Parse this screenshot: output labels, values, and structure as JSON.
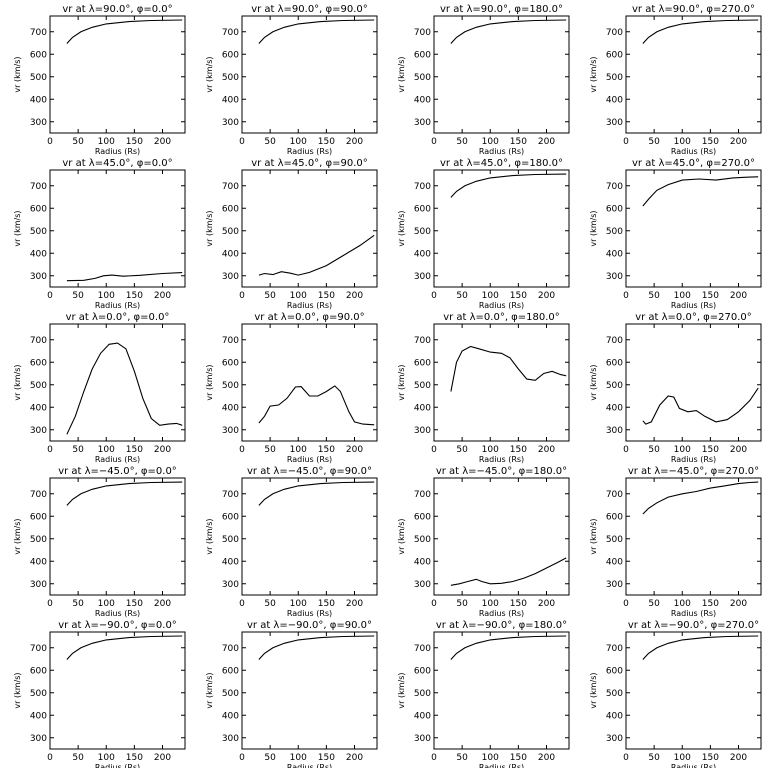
{
  "chart_data": {
    "type": "line",
    "x_label": "Radius (Rs)",
    "y_label": "vr (km/s)",
    "x_range": [
      0,
      240
    ],
    "y_range": [
      250,
      770
    ],
    "x_ticks": [
      0,
      50,
      100,
      150,
      200
    ],
    "y_ticks": [
      300,
      400,
      500,
      600,
      700
    ],
    "grid": false,
    "panels": [
      {
        "title": "vr at λ=90.0°, φ=0.0°",
        "points": [
          [
            30,
            648
          ],
          [
            40,
            675
          ],
          [
            55,
            700
          ],
          [
            75,
            720
          ],
          [
            100,
            735
          ],
          [
            140,
            745
          ],
          [
            180,
            750
          ],
          [
            235,
            752
          ]
        ]
      },
      {
        "title": "vr at λ=90.0°, φ=90.0°",
        "points": [
          [
            30,
            648
          ],
          [
            40,
            675
          ],
          [
            55,
            700
          ],
          [
            75,
            720
          ],
          [
            100,
            735
          ],
          [
            140,
            745
          ],
          [
            180,
            750
          ],
          [
            235,
            752
          ]
        ]
      },
      {
        "title": "vr at λ=90.0°, φ=180.0°",
        "points": [
          [
            30,
            648
          ],
          [
            40,
            675
          ],
          [
            55,
            700
          ],
          [
            75,
            720
          ],
          [
            100,
            735
          ],
          [
            140,
            745
          ],
          [
            180,
            750
          ],
          [
            235,
            752
          ]
        ]
      },
      {
        "title": "vr at λ=90.0°, φ=270.0°",
        "points": [
          [
            30,
            648
          ],
          [
            40,
            675
          ],
          [
            55,
            700
          ],
          [
            75,
            720
          ],
          [
            100,
            735
          ],
          [
            140,
            745
          ],
          [
            180,
            750
          ],
          [
            235,
            752
          ]
        ]
      },
      {
        "title": "vr at λ=45.0°, φ=0.0°",
        "points": [
          [
            30,
            278
          ],
          [
            60,
            280
          ],
          [
            80,
            288
          ],
          [
            95,
            300
          ],
          [
            110,
            303
          ],
          [
            130,
            298
          ],
          [
            160,
            302
          ],
          [
            200,
            310
          ],
          [
            235,
            314
          ]
        ]
      },
      {
        "title": "vr at λ=45.0°, φ=90.0°",
        "points": [
          [
            30,
            303
          ],
          [
            40,
            310
          ],
          [
            55,
            305
          ],
          [
            70,
            318
          ],
          [
            85,
            312
          ],
          [
            100,
            303
          ],
          [
            120,
            315
          ],
          [
            150,
            345
          ],
          [
            180,
            390
          ],
          [
            210,
            435
          ],
          [
            235,
            480
          ]
        ]
      },
      {
        "title": "vr at λ=45.0°, φ=180.0°",
        "points": [
          [
            30,
            648
          ],
          [
            40,
            675
          ],
          [
            55,
            700
          ],
          [
            75,
            720
          ],
          [
            100,
            735
          ],
          [
            140,
            745
          ],
          [
            180,
            750
          ],
          [
            235,
            752
          ]
        ]
      },
      {
        "title": "vr at λ=45.0°, φ=270.0°",
        "points": [
          [
            30,
            610
          ],
          [
            40,
            640
          ],
          [
            55,
            680
          ],
          [
            75,
            705
          ],
          [
            100,
            725
          ],
          [
            130,
            730
          ],
          [
            160,
            725
          ],
          [
            190,
            735
          ],
          [
            215,
            738
          ],
          [
            235,
            740
          ]
        ]
      },
      {
        "title": "vr at λ=0.0°, φ=0.0°",
        "points": [
          [
            30,
            280
          ],
          [
            45,
            360
          ],
          [
            60,
            470
          ],
          [
            75,
            570
          ],
          [
            90,
            640
          ],
          [
            105,
            680
          ],
          [
            120,
            685
          ],
          [
            135,
            660
          ],
          [
            150,
            560
          ],
          [
            165,
            440
          ],
          [
            180,
            350
          ],
          [
            195,
            320
          ],
          [
            210,
            325
          ],
          [
            225,
            328
          ],
          [
            235,
            320
          ]
        ]
      },
      {
        "title": "vr at λ=0.0°, φ=90.0°",
        "points": [
          [
            30,
            330
          ],
          [
            40,
            360
          ],
          [
            50,
            405
          ],
          [
            65,
            410
          ],
          [
            80,
            440
          ],
          [
            95,
            490
          ],
          [
            105,
            492
          ],
          [
            120,
            450
          ],
          [
            135,
            450
          ],
          [
            150,
            470
          ],
          [
            165,
            495
          ],
          [
            175,
            470
          ],
          [
            190,
            380
          ],
          [
            200,
            335
          ],
          [
            215,
            325
          ],
          [
            235,
            322
          ]
        ]
      },
      {
        "title": "vr at λ=0.0°, φ=180.0°",
        "points": [
          [
            30,
            470
          ],
          [
            40,
            600
          ],
          [
            50,
            650
          ],
          [
            65,
            670
          ],
          [
            80,
            660
          ],
          [
            100,
            645
          ],
          [
            120,
            640
          ],
          [
            135,
            620
          ],
          [
            150,
            570
          ],
          [
            165,
            525
          ],
          [
            180,
            520
          ],
          [
            195,
            550
          ],
          [
            210,
            560
          ],
          [
            225,
            545
          ],
          [
            235,
            540
          ]
        ]
      },
      {
        "title": "vr at λ=0.0°, φ=270.0°",
        "points": [
          [
            30,
            340
          ],
          [
            35,
            325
          ],
          [
            45,
            335
          ],
          [
            60,
            410
          ],
          [
            75,
            450
          ],
          [
            85,
            445
          ],
          [
            95,
            395
          ],
          [
            110,
            380
          ],
          [
            125,
            385
          ],
          [
            140,
            360
          ],
          [
            160,
            335
          ],
          [
            180,
            345
          ],
          [
            200,
            380
          ],
          [
            220,
            430
          ],
          [
            235,
            485
          ]
        ]
      },
      {
        "title": "vr at λ=−45.0°, φ=0.0°",
        "points": [
          [
            30,
            648
          ],
          [
            40,
            675
          ],
          [
            55,
            700
          ],
          [
            75,
            720
          ],
          [
            100,
            735
          ],
          [
            140,
            745
          ],
          [
            180,
            750
          ],
          [
            235,
            752
          ]
        ]
      },
      {
        "title": "vr at λ=−45.0°, φ=90.0°",
        "points": [
          [
            30,
            648
          ],
          [
            40,
            675
          ],
          [
            55,
            700
          ],
          [
            75,
            720
          ],
          [
            100,
            735
          ],
          [
            140,
            745
          ],
          [
            180,
            750
          ],
          [
            235,
            752
          ]
        ]
      },
      {
        "title": "vr at λ=−45.0°, φ=180.0°",
        "points": [
          [
            30,
            293
          ],
          [
            45,
            300
          ],
          [
            60,
            310
          ],
          [
            75,
            320
          ],
          [
            85,
            310
          ],
          [
            100,
            300
          ],
          [
            120,
            302
          ],
          [
            140,
            310
          ],
          [
            160,
            325
          ],
          [
            180,
            345
          ],
          [
            200,
            370
          ],
          [
            220,
            395
          ],
          [
            235,
            415
          ]
        ]
      },
      {
        "title": "vr at λ=−45.0°, φ=270.0°",
        "points": [
          [
            30,
            610
          ],
          [
            40,
            635
          ],
          [
            55,
            660
          ],
          [
            75,
            685
          ],
          [
            100,
            700
          ],
          [
            125,
            710
          ],
          [
            150,
            725
          ],
          [
            175,
            735
          ],
          [
            200,
            745
          ],
          [
            220,
            750
          ],
          [
            235,
            752
          ]
        ]
      },
      {
        "title": "vr at λ=−90.0°, φ=0.0°",
        "points": [
          [
            30,
            648
          ],
          [
            40,
            675
          ],
          [
            55,
            700
          ],
          [
            75,
            720
          ],
          [
            100,
            735
          ],
          [
            140,
            745
          ],
          [
            180,
            750
          ],
          [
            235,
            752
          ]
        ]
      },
      {
        "title": "vr at λ=−90.0°, φ=90.0°",
        "points": [
          [
            30,
            648
          ],
          [
            40,
            675
          ],
          [
            55,
            700
          ],
          [
            75,
            720
          ],
          [
            100,
            735
          ],
          [
            140,
            745
          ],
          [
            180,
            750
          ],
          [
            235,
            752
          ]
        ]
      },
      {
        "title": "vr at λ=−90.0°, φ=180.0°",
        "points": [
          [
            30,
            648
          ],
          [
            40,
            675
          ],
          [
            55,
            700
          ],
          [
            75,
            720
          ],
          [
            100,
            735
          ],
          [
            140,
            745
          ],
          [
            180,
            750
          ],
          [
            235,
            752
          ]
        ]
      },
      {
        "title": "vr at λ=−90.0°, φ=270.0°",
        "points": [
          [
            30,
            648
          ],
          [
            40,
            675
          ],
          [
            55,
            700
          ],
          [
            75,
            720
          ],
          [
            100,
            735
          ],
          [
            140,
            745
          ],
          [
            180,
            750
          ],
          [
            235,
            752
          ]
        ]
      }
    ]
  }
}
